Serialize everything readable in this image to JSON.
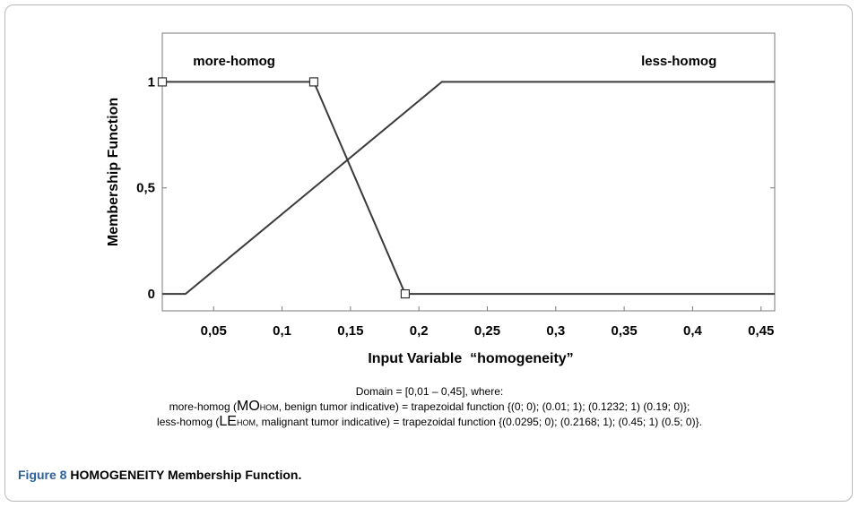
{
  "chart_data": {
    "type": "line",
    "xlabel": "Input Variable  “homogeneity”",
    "ylabel": "Membership Function",
    "xlim": [
      0.0125,
      0.46
    ],
    "ylim": [
      -0.08,
      1.23
    ],
    "x_ticks": [
      {
        "v": 0.05,
        "label": "0,05"
      },
      {
        "v": 0.1,
        "label": "0,1"
      },
      {
        "v": 0.15,
        "label": "0,15"
      },
      {
        "v": 0.2,
        "label": "0,2"
      },
      {
        "v": 0.25,
        "label": "0,25"
      },
      {
        "v": 0.3,
        "label": "0,3"
      },
      {
        "v": 0.35,
        "label": "0,35"
      },
      {
        "v": 0.4,
        "label": "0,4"
      },
      {
        "v": 0.45,
        "label": "0,45"
      }
    ],
    "y_ticks": [
      {
        "v": 0,
        "label": "0"
      },
      {
        "v": 0.5,
        "label": "0,5"
      },
      {
        "v": 1,
        "label": "1"
      }
    ],
    "series": [
      {
        "name": "more-homog",
        "points": [
          [
            0.0125,
            1
          ],
          [
            0.1232,
            1
          ],
          [
            0.19,
            0
          ],
          [
            0.46,
            0
          ]
        ],
        "markers": [
          [
            0.0125,
            1
          ],
          [
            0.1232,
            1
          ],
          [
            0.19,
            0
          ]
        ],
        "label_at": [
          0.065,
          1.1
        ]
      },
      {
        "name": "less-homog",
        "points": [
          [
            0.0125,
            0
          ],
          [
            0.0295,
            0
          ],
          [
            0.2168,
            1
          ],
          [
            0.46,
            1
          ]
        ],
        "markers": [],
        "label_at": [
          0.39,
          1.1
        ]
      }
    ],
    "grid": false,
    "line_color": "#3a3a3a"
  },
  "notes": {
    "domain": "Domain = [0,01 – 0,45], where:",
    "line1": {
      "pre": "more-homog (",
      "abbr": "MO",
      "sub": "HOM",
      "post": ", benign tumor indicative) = trapezoidal function {(0; 0); (0.01; 1); (0.1232; 1) (0.19; 0)};"
    },
    "line2": {
      "pre": "less-homog (",
      "abbr": "LE",
      "sub": "HOM",
      "post": ", malignant tumor indicative) = trapezoidal function {(0.0295; 0); (0.2168; 1); (0.45; 1) (0.5; 0)}."
    }
  },
  "caption": {
    "number": "Figure 8",
    "text": "HOMOGENEITY Membership Function."
  }
}
